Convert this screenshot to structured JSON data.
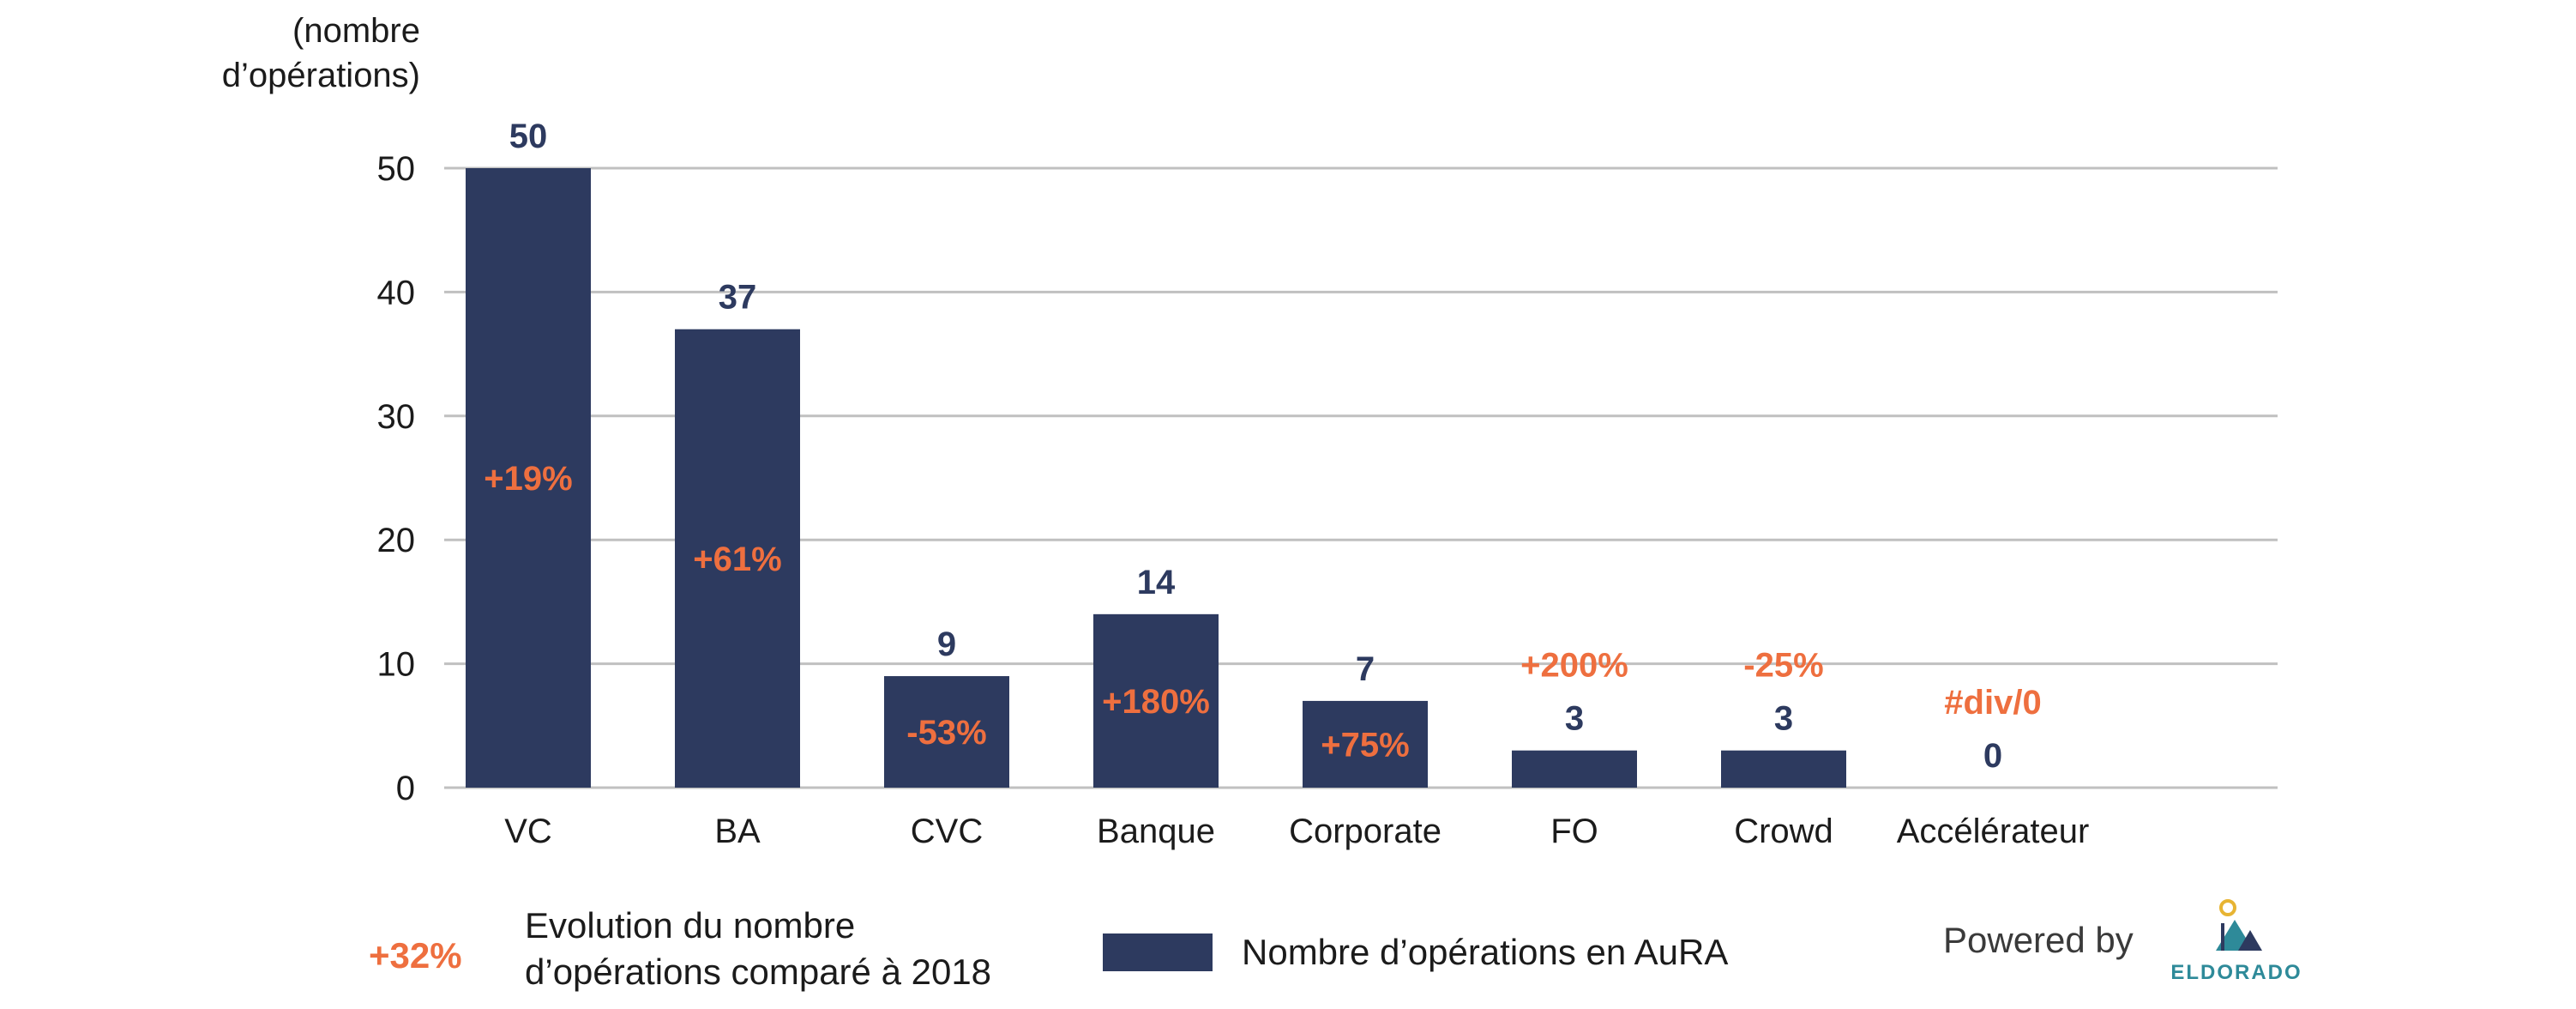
{
  "colors": {
    "bar": "#2d3a5f",
    "value_label": "#2d3a5f",
    "change_label": "#ee6f3f",
    "grid": "#c0c0c0",
    "axis_text": "#1b1b1b",
    "logo_accent": "#e7b433",
    "logo_teal": "#2e8a99"
  },
  "chart_data": {
    "type": "bar",
    "title": "",
    "ylabel": "(nombre d’opérations)",
    "xlabel": "",
    "ylim": [
      0,
      50
    ],
    "yticks": [
      0,
      10,
      20,
      30,
      40,
      50
    ],
    "grid": true,
    "categories": [
      "VC",
      "BA",
      "CVC",
      "Banque",
      "Corporate",
      "FO",
      "Crowd",
      "Accélérateur"
    ],
    "series": [
      {
        "name": "Nombre d’opérations en AuRA",
        "values": [
          50,
          37,
          9,
          14,
          7,
          3,
          3,
          0
        ],
        "value_labels": [
          "50",
          "37",
          "9",
          "14",
          "7",
          "3",
          "3",
          "0"
        ]
      }
    ],
    "changes": [
      {
        "text": "+19%",
        "position": "inside"
      },
      {
        "text": "+61%",
        "position": "inside"
      },
      {
        "text": "-53%",
        "position": "inside"
      },
      {
        "text": "+180%",
        "position": "inside"
      },
      {
        "text": "+75%",
        "position": "inside"
      },
      {
        "text": "+200%",
        "position": "above"
      },
      {
        "text": "-25%",
        "position": "above"
      },
      {
        "text": "#div/0",
        "position": "above"
      }
    ],
    "legend_placement": "bottom"
  },
  "axis": {
    "title_line1": "(nombre",
    "title_line2": "d’opérations)"
  },
  "footer": {
    "change_example": "+32%",
    "change_text_line1": "Evolution du nombre",
    "change_text_line2": "d’opérations comparé à 2018",
    "legend_label": "Nombre d’opérations en AuRA",
    "powered_by": "Powered by",
    "logo_text": "ELDORADO"
  }
}
